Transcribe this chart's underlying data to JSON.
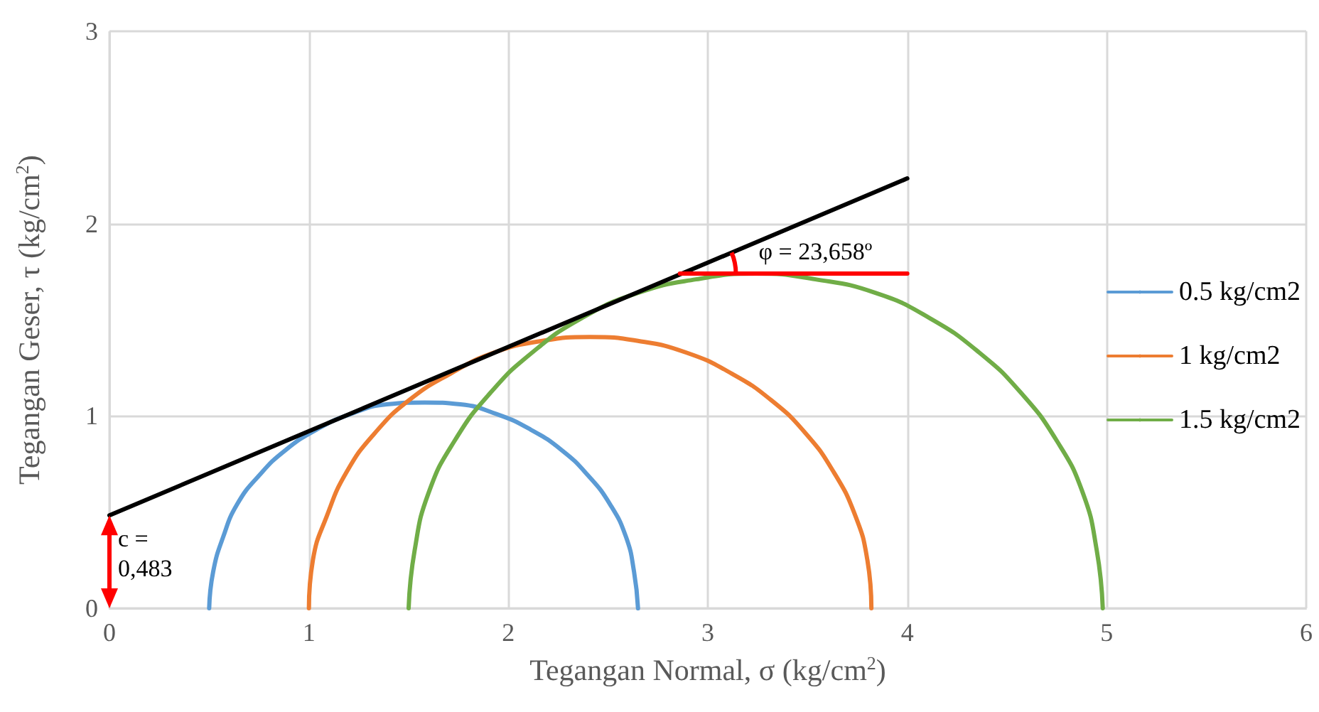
{
  "chart_data": {
    "type": "line",
    "xlabel": "Tegangan Normal, σ (kg/cm$^{2}$)",
    "ylabel": "Tegangan Geser, τ (kg/cm$^{2}$)",
    "xlim": [
      0,
      6
    ],
    "xticks": [
      0,
      1,
      2,
      3,
      4,
      5,
      6
    ],
    "ylim": [
      0,
      3
    ],
    "yticks": [
      0,
      1,
      2,
      3
    ],
    "grid": true,
    "legend": "right",
    "marker": "none",
    "line_style": "solid",
    "series": [
      {
        "name": "0.5 kg/cm2",
        "color": "#5b9bd5",
        "x": [
          0.5,
          0.52,
          0.57,
          0.64,
          0.75,
          0.88,
          1.04,
          1.21,
          1.39,
          1.58,
          1.76,
          1.94,
          2.11,
          2.27,
          2.4,
          2.51,
          2.59,
          2.63,
          2.65
        ],
        "values": [
          0,
          0.19,
          0.37,
          0.54,
          0.69,
          0.82,
          0.93,
          1.01,
          1.06,
          1.07,
          1.06,
          1.01,
          0.93,
          0.82,
          0.69,
          0.54,
          0.37,
          0.19,
          0
        ]
      },
      {
        "name": "1 kg/cm2",
        "color": "#ed7d31",
        "x": [
          1.0,
          1.02,
          1.09,
          1.19,
          1.33,
          1.5,
          1.71,
          1.93,
          2.17,
          2.41,
          2.65,
          2.89,
          3.12,
          3.32,
          3.49,
          3.63,
          3.74,
          3.8,
          3.82
        ],
        "values": [
          0,
          0.25,
          0.48,
          0.71,
          0.91,
          1.08,
          1.22,
          1.33,
          1.39,
          1.41,
          1.39,
          1.33,
          1.22,
          1.08,
          0.91,
          0.71,
          0.48,
          0.25,
          0
        ]
      },
      {
        "name": "1.5 kg/cm2",
        "color": "#70ad47",
        "x": [
          1.5,
          1.53,
          1.6,
          1.73,
          1.91,
          2.12,
          2.37,
          2.65,
          2.94,
          3.24,
          3.54,
          3.84,
          4.11,
          4.36,
          4.57,
          4.75,
          4.88,
          4.95,
          4.98
        ],
        "values": [
          0,
          0.3,
          0.6,
          0.87,
          1.12,
          1.33,
          1.51,
          1.64,
          1.71,
          1.74,
          1.71,
          1.64,
          1.51,
          1.33,
          1.12,
          0.87,
          0.6,
          0.3,
          0
        ]
      },
      {
        "color": "#000000",
        "x": [
          0,
          4
        ],
        "values": [
          0.483,
          2.235
        ]
      },
      {
        "color": "#ff0000",
        "x": [
          2.86,
          4
        ],
        "values": [
          1.74,
          1.74
        ]
      }
    ],
    "annotations": [
      "φ = 23,658º",
      "c =\n0,483"
    ]
  }
}
